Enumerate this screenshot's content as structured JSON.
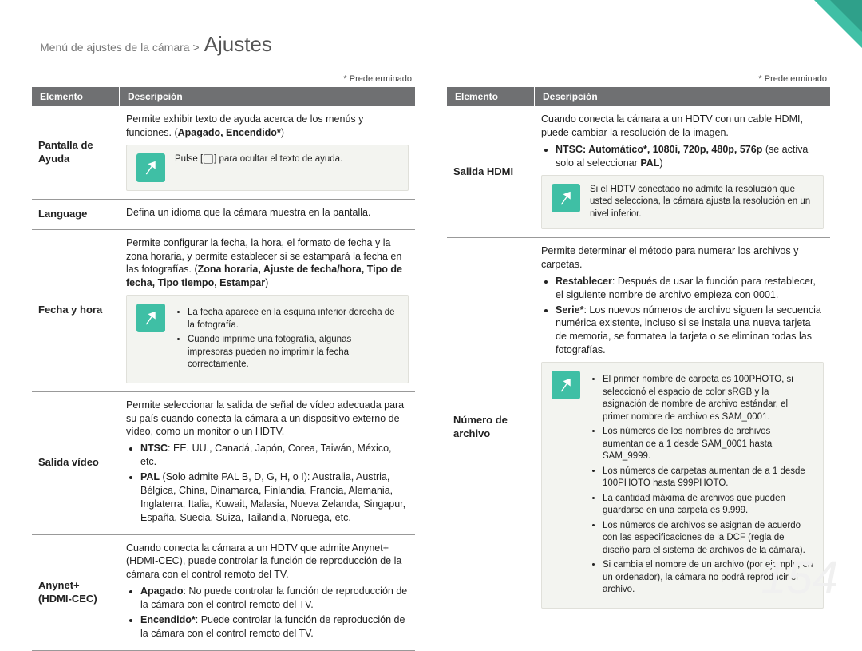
{
  "header": {
    "breadcrumb": "Menú de ajustes de la cámara >",
    "title": "Ajustes"
  },
  "default_label": "* Predeterminado",
  "thead": {
    "element": "Elemento",
    "description": "Descripción"
  },
  "left": {
    "help": {
      "label": "Pantalla de Ayuda",
      "desc": "Permite exhibir texto de ayuda acerca de los menús y funciones. (",
      "desc_bold": "Apagado, Encendido*",
      "desc_end": ")",
      "note_pre": "Pulse [",
      "note_post": "] para ocultar el texto de ayuda."
    },
    "language": {
      "label": "Language",
      "desc": "Defina un idioma que la cámara muestra en la pantalla."
    },
    "datetime": {
      "label": "Fecha y hora",
      "desc": "Permite configurar la fecha, la hora, el formato de fecha y la zona horaria, y permite establecer si se estampará la fecha en las fotografías. (",
      "desc_bold": "Zona horaria, Ajuste de fecha/hora, Tipo de fecha, Tipo tiempo, Estampar",
      "desc_end": ")",
      "note1": "La fecha aparece en la esquina inferior derecha de la fotografía.",
      "note2": "Cuando imprime una fotografía, algunas impresoras pueden no imprimir la fecha correctamente."
    },
    "videoout": {
      "label": "Salida vídeo",
      "desc": "Permite seleccionar la salida de señal de vídeo adecuada para su país cuando conecta la cámara a un dispositivo externo de vídeo, como un monitor o un HDTV.",
      "ntsc_head": "NTSC",
      "ntsc": ": EE. UU., Canadá, Japón, Corea, Taiwán, México, etc.",
      "pal_head": "PAL",
      "pal": " (Solo admite PAL B, D, G, H, o I): Australia, Austria, Bélgica, China, Dinamarca, Finlandia, Francia, Alemania, Inglaterra, Italia, Kuwait, Malasia, Nueva Zelanda, Singapur, España, Suecia, Suiza, Tailandia, Noruega, etc."
    },
    "anynet": {
      "label": "Anynet+ (HDMI-CEC)",
      "desc": "Cuando conecta la cámara a un HDTV que admite Anynet+ (HDMI-CEC), puede controlar la función de reproducción de la cámara con el control remoto del TV.",
      "off_head": "Apagado",
      "off": ": No puede controlar la función de reproducción de la cámara con el control remoto del TV.",
      "on_head": "Encendido*",
      "on": ": Puede controlar la función de reproducción de la cámara con el control remoto del TV."
    }
  },
  "right": {
    "hdmi": {
      "label": "Salida HDMI",
      "desc": "Cuando conecta la cámara a un HDTV con un cable HDMI, puede cambiar la resolución de la imagen.",
      "bullet_head": "NTSC: Automático*, 1080i, 720p, 480p, 576p",
      "bullet_tail": " (se activa solo al seleccionar ",
      "bullet_pal": "PAL",
      "bullet_end": ")",
      "note": "Si el HDTV conectado no admite la resolución que usted selecciona, la cámara ajusta la resolución en un nivel inferior."
    },
    "fileno": {
      "label": "Número de archivo",
      "desc": "Permite determinar el método para numerar los archivos y carpetas.",
      "reset_head": "Restablecer",
      "reset": ": Después de usar la función para restablecer, el siguiente nombre de archivo empieza con 0001.",
      "series_head": "Serie*",
      "series": ": Los nuevos números de archivo siguen la secuencia numérica existente, incluso si se instala una nueva tarjeta de memoria, se formatea la tarjeta o se eliminan todas las fotografías.",
      "n1": "El primer nombre de carpeta es 100PHOTO, si seleccionó el espacio de color sRGB y la asignación de nombre de archivo estándar, el primer nombre de archivo es SAM_0001.",
      "n2": "Los números de los nombres de archivos aumentan de a 1 desde SAM_0001 hasta SAM_9999.",
      "n3": "Los números de carpetas aumentan de a 1 desde 100PHOTO hasta 999PHOTO.",
      "n4": "La cantidad máxima de archivos que pueden guardarse en una carpeta es 9.999.",
      "n5": "Los números de archivos se asignan de acuerdo con las especificaciones de la DCF (regla de diseño para el sistema de archivos de la cámara).",
      "n6": "Si cambia el nombre de un archivo (por ejemplo, en un ordenador), la cámara no podrá reproducir el archivo."
    }
  },
  "page_number": "154"
}
